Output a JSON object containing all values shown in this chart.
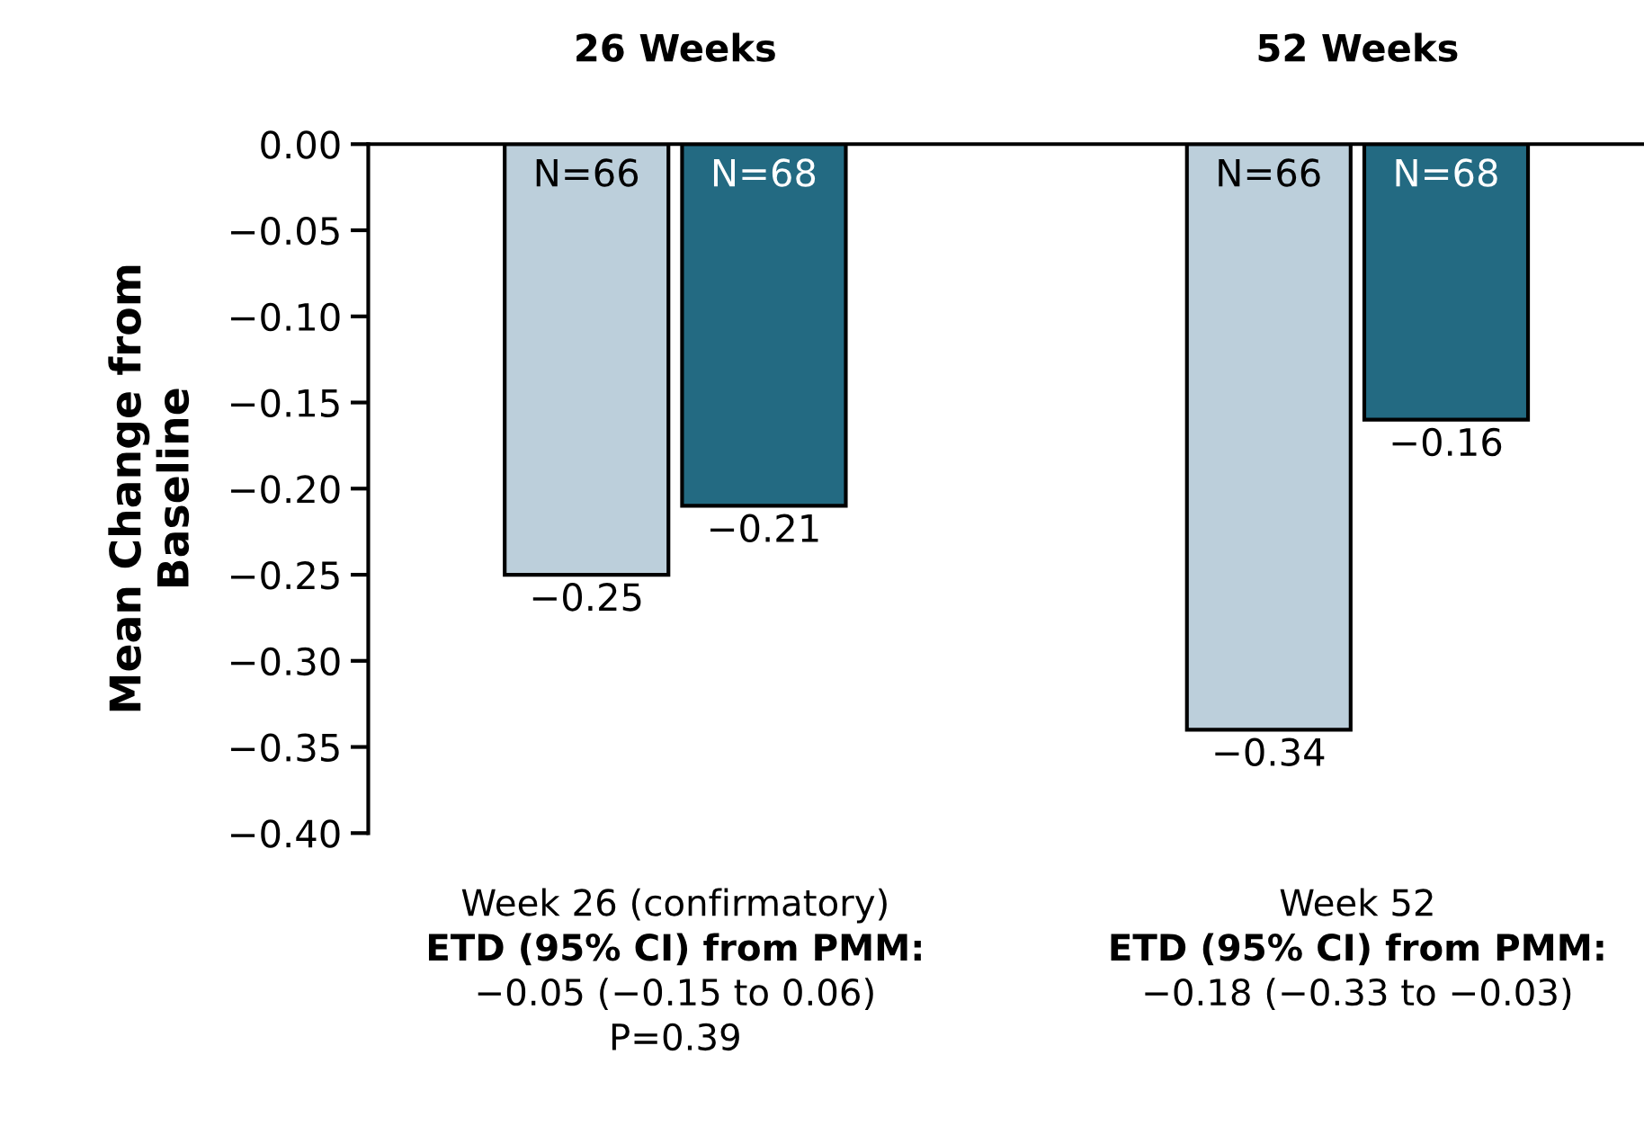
{
  "chart_data": {
    "type": "bar",
    "ylabel": "Mean Change from\nBaseline",
    "categories": [
      "26 Weeks",
      "52 Weeks"
    ],
    "series": [
      {
        "color": "#bccfdb",
        "values": [
          -0.25,
          -0.34
        ],
        "value_labels": [
          "−0.25",
          "−0.34"
        ]
      },
      {
        "color": "#236a82",
        "values": [
          -0.21,
          -0.16
        ],
        "value_labels": [
          "−0.21",
          "−0.16"
        ]
      }
    ],
    "ylim": [
      -0.4,
      0
    ],
    "yticks": [
      {
        "value": 0,
        "label": "0.00"
      },
      {
        "value": -0.05,
        "label": "−0.05"
      },
      {
        "value": -0.1,
        "label": "−0.10"
      },
      {
        "value": -0.15,
        "label": "−0.15"
      },
      {
        "value": -0.2,
        "label": "−0.20"
      },
      {
        "value": -0.25,
        "label": "−0.25"
      },
      {
        "value": -0.3,
        "label": "−0.30"
      },
      {
        "value": -0.35,
        "label": "−0.35"
      },
      {
        "value": -0.4,
        "label": "−0.40"
      }
    ],
    "grid": false,
    "legend": false,
    "annotations": [
      "N=66",
      "N=68",
      "N=66",
      "N=68",
      "Week 26 (confirmatory)\nETD (95% CI) from PMM:\n−0.05 (−0.15 to 0.06)\nP=0.39",
      "Week 52\nETD (95% CI) from PMM:\n−0.18 (−0.33 to −0.03)"
    ]
  }
}
